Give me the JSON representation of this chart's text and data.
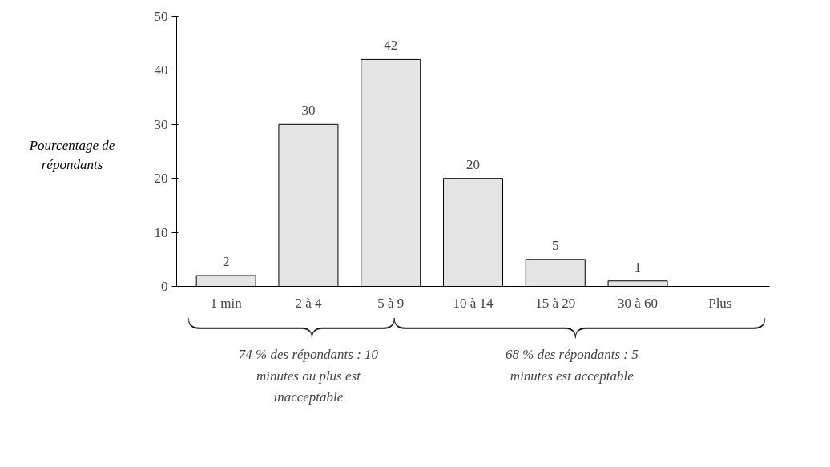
{
  "chart_data": {
    "type": "bar",
    "ylabel": "Pourcentage de répondants",
    "categories": [
      "1 min",
      "2 à 4",
      "5 à 9",
      "10 à 14",
      "15 à 29",
      "30 à 60",
      "Plus"
    ],
    "values": [
      2,
      30,
      42,
      20,
      5,
      1,
      0
    ],
    "value_labels": [
      "2",
      "30",
      "42",
      "20",
      "5",
      "1",
      null
    ],
    "color": "#e4e4e4",
    "ylim": [
      0,
      50
    ],
    "yticks": [
      0,
      10,
      20,
      30,
      40,
      50
    ],
    "grid": false,
    "annotations": [
      "74 % des répondants : 10 minutes ou plus est inacceptable",
      "68 % des répondants : 5 minutes est acceptable"
    ]
  }
}
